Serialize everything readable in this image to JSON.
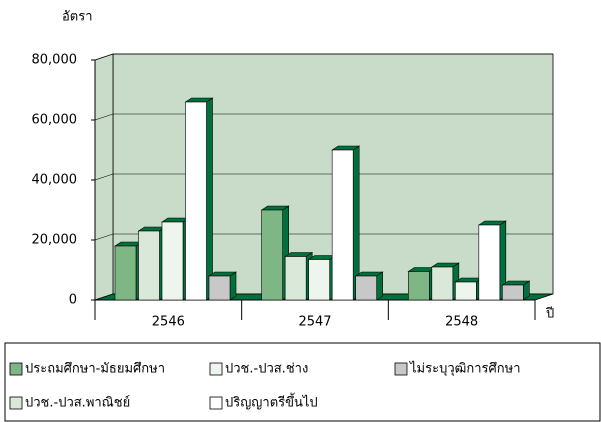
{
  "chart_data": {
    "type": "bar3d",
    "y_label": "อัตรา",
    "x_label": "ปี",
    "categories": [
      "2546",
      "2547",
      "2548"
    ],
    "series": [
      {
        "name": "ประถมศึกษา-มัธยมศึกษา",
        "color": "#7fb685",
        "values": [
          18000,
          30000,
          9500
        ]
      },
      {
        "name": "ปวช.-ปวส.พาณิชย์",
        "color": "#d9e8d9",
        "values": [
          23000,
          14500,
          11000
        ]
      },
      {
        "name": "ปวช.-ปวส.ช่าง",
        "color": "#eef5ee",
        "values": [
          26000,
          13500,
          6000
        ]
      },
      {
        "name": "ปริญญาตรีขึ้นไป",
        "color": "#ffffff",
        "values": [
          66000,
          50000,
          25000
        ]
      },
      {
        "name": "ไม่ระบุวุฒิการศึกษา",
        "color": "#c8c8c8",
        "values": [
          8000,
          8000,
          5000
        ]
      }
    ],
    "ylim": [
      0,
      80000
    ],
    "yticks": [
      0,
      {
        "value": 20000,
        "label": "20,000"
      },
      {
        "value": 40000,
        "label": "40,000"
      },
      {
        "value": 60000,
        "label": "60,000"
      },
      {
        "value": 80000,
        "label": "80,000"
      }
    ],
    "grid": true,
    "wall_color": "#c9dcc9",
    "depth_color": "#00703c"
  }
}
